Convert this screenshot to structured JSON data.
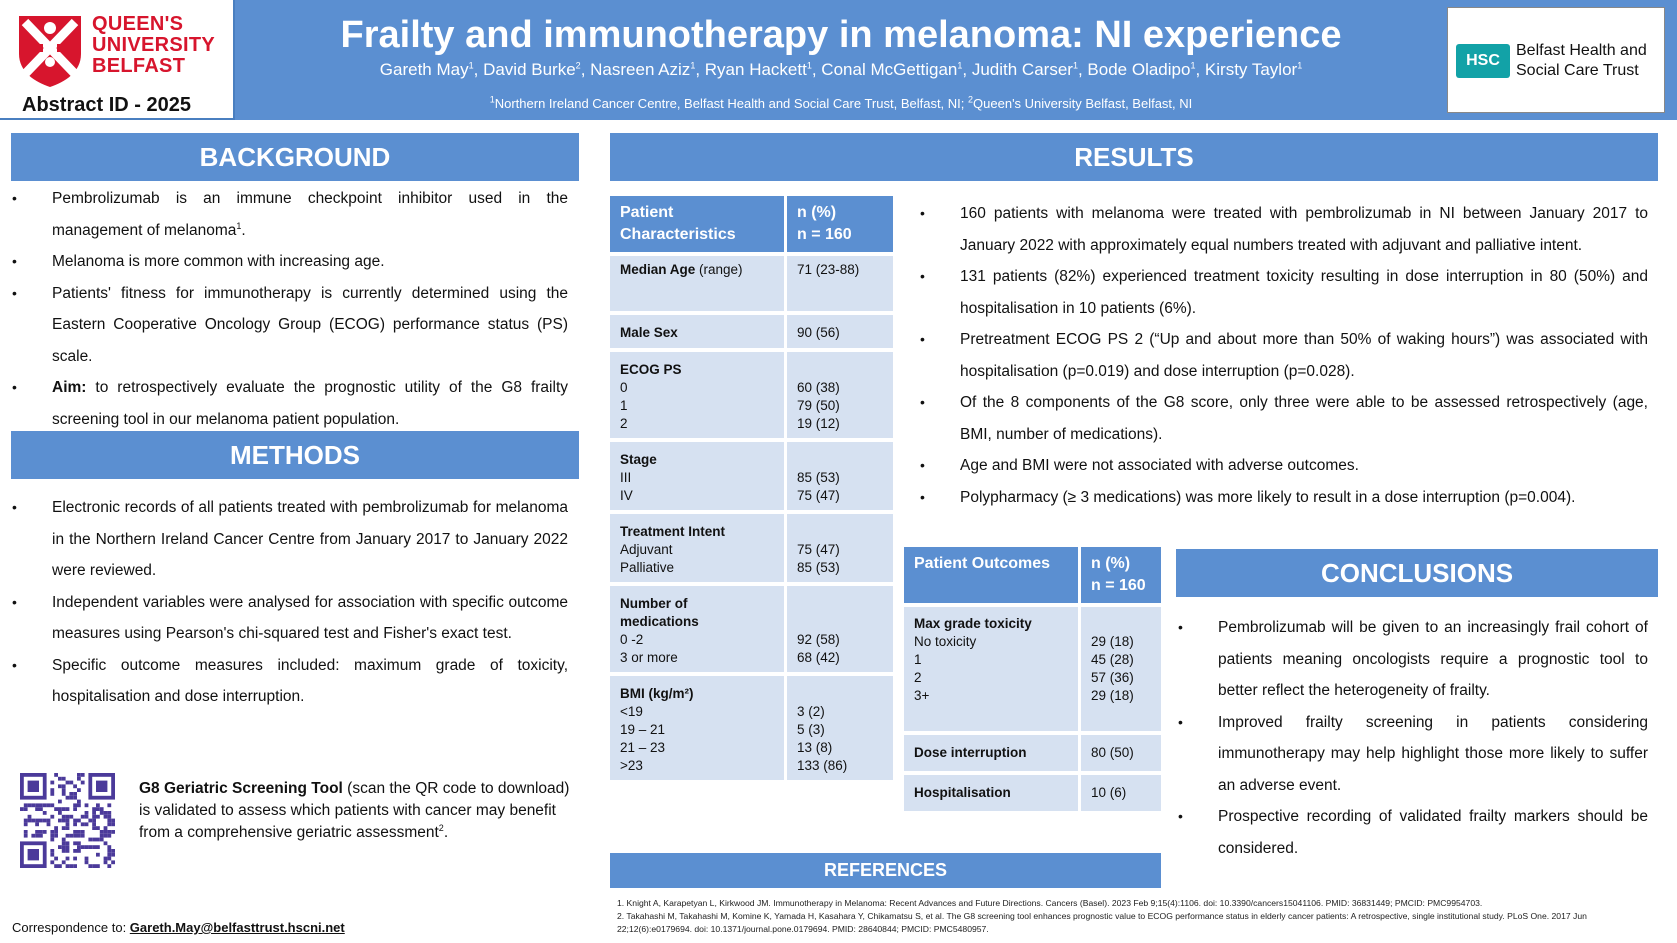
{
  "header": {
    "university": [
      "QUEEN'S",
      "UNIVERSITY",
      "BELFAST"
    ],
    "abstract_id": "Abstract ID - 2025",
    "title": "Frailty and immunotherapy in melanoma: NI experience",
    "authors": [
      {
        "name": "Gareth May",
        "sup": "1"
      },
      {
        "name": "David Burke",
        "sup": "2"
      },
      {
        "name": "Nasreen Aziz",
        "sup": "1"
      },
      {
        "name": "Ryan Hackett",
        "sup": "1"
      },
      {
        "name": "Conal McGettigan",
        "sup": "1"
      },
      {
        "name": "Judith Carser",
        "sup": "1"
      },
      {
        "name": "Bode Oladipo",
        "sup": "1"
      },
      {
        "name": "Kirsty Taylor",
        "sup": "1"
      }
    ],
    "affil_1": "Northern Ireland Cancer Centre, Belfast Health and Social Care Trust, Belfast, NI; ",
    "affil_2": "Queen's University Belfast, Belfast, NI",
    "hsc_logo": "HSC",
    "hsc_line1": "Belfast Health and",
    "hsc_line2": "Social Care Trust",
    "colors": {
      "accent": "#5b8fd1",
      "table_fill": "#d6e1f1",
      "qub_red": "#d7152d",
      "hsc_teal": "#12a2a7"
    }
  },
  "background": {
    "heading": "BACKGROUND",
    "items": [
      {
        "pre": "Pembrolizumab is an immune checkpoint inhibitor used in the management of melanoma",
        "sup": "1",
        "post": "."
      },
      {
        "pre": "Melanoma is more common with increasing age.",
        "sup": "",
        "post": ""
      },
      {
        "pre": "Patients' fitness for immunotherapy is currently determined using the Eastern Cooperative Oncology Group (ECOG) performance status (PS) scale.",
        "sup": "",
        "post": ""
      }
    ],
    "aim_label": "Aim:",
    "aim_text": " to retrospectively evaluate the prognostic utility of the G8 frailty screening tool in our melanoma patient population."
  },
  "methods": {
    "heading": "METHODS",
    "items": [
      "Electronic records of all patients treated with pembrolizumab for melanoma in the Northern Ireland Cancer Centre from January 2017 to January 2022 were reviewed.",
      "Independent variables were analysed for association with specific outcome measures using Pearson's chi-squared test and Fisher's exact test.",
      "Specific outcome measures included: maximum grade of toxicity, hospitalisation and dose interruption."
    ],
    "g8_bold": "G8 Geriatric Screening Tool",
    "g8_rest": " (scan the QR code to download) is validated to assess which patients with cancer may benefit from a comprehensive geriatric assessment",
    "g8_sup": "2",
    "g8_end": "."
  },
  "correspondence": {
    "label": "Correspondence to: ",
    "email": "Gareth.May@belfasttrust.hscni.net"
  },
  "results": {
    "heading": "RESULTS",
    "items": [
      "160 patients with melanoma were treated with pembrolizumab in NI between January 2017 to January 2022 with approximately equal numbers treated with adjuvant and palliative intent.",
      "131 patients (82%) experienced treatment toxicity resulting in dose interruption in 80 (50%) and hospitalisation in 10 patients (6%).",
      "Pretreatment ECOG PS 2 (“Up and about more than 50% of waking hours”) was associated with hospitalisation (p=0.019) and dose interruption (p=0.028).",
      "Of the 8 components of the G8 score, only three were able to be assessed retrospectively (age, BMI, number of medications).",
      "Age and BMI were not associated with adverse outcomes.",
      "Polypharmacy (≥ 3 medications) was more likely to result in a dose interruption (p=0.004)."
    ]
  },
  "characteristics_table": {
    "header_left": [
      "Patient",
      "Characteristics"
    ],
    "header_right": [
      "n (%)",
      "n = 160"
    ],
    "median_age_label": "Median Age",
    "median_age_suffix": " (range)",
    "median_age_value": "71 (23-88)",
    "male_sex_label": "Male Sex",
    "male_sex_value": "90 (56)",
    "groups": [
      {
        "title": [
          "ECOG PS"
        ],
        "rows": [
          [
            "0",
            "60 (38)"
          ],
          [
            "1",
            "79 (50)"
          ],
          [
            "2",
            "19 (12)"
          ]
        ]
      },
      {
        "title": [
          "Stage"
        ],
        "rows": [
          [
            "III",
            "85 (53)"
          ],
          [
            "IV",
            "75 (47)"
          ]
        ]
      },
      {
        "title": [
          "Treatment Intent"
        ],
        "rows": [
          [
            "Adjuvant",
            "75 (47)"
          ],
          [
            "Palliative",
            "85 (53)"
          ]
        ]
      },
      {
        "title": [
          "Number of",
          "medications"
        ],
        "rows": [
          [
            "0 -2",
            "92 (58)"
          ],
          [
            "3 or more",
            "68 (42)"
          ]
        ]
      },
      {
        "title": [
          "BMI (kg/m²)"
        ],
        "rows": [
          [
            "<19",
            "3 (2)"
          ],
          [
            "19 – 21",
            "5 (3)"
          ],
          [
            "21 – 23",
            "13 (8)"
          ],
          [
            ">23",
            "133 (86)"
          ]
        ]
      }
    ]
  },
  "outcomes_table": {
    "header_left": "Patient Outcomes",
    "header_right": [
      "n (%)",
      "n = 160"
    ],
    "toxicity_title": "Max grade toxicity",
    "toxicity_rows": [
      [
        "No toxicity",
        "29 (18)"
      ],
      [
        "1",
        "45 (28)"
      ],
      [
        "2",
        "57 (36)"
      ],
      [
        "3+",
        "29 (18)"
      ]
    ],
    "dose_label": "Dose interruption",
    "dose_value": "80 (50)",
    "hosp_label": "Hospitalisation",
    "hosp_value": "10 (6)"
  },
  "conclusions": {
    "heading": "CONCLUSIONS",
    "items": [
      "Pembrolizumab will be given to an increasingly frail cohort of patients meaning oncologists require a prognostic tool to better reflect the heterogeneity of frailty.",
      "Improved frailty screening in patients considering immunotherapy may help highlight those more likely to suffer an adverse event.",
      "Prospective recording of validated frailty markers should be considered."
    ]
  },
  "references": {
    "heading": "REFERENCES",
    "items": [
      "1. Knight A, Karapetyan L, Kirkwood JM. Immunotherapy in Melanoma: Recent Advances and Future Directions. Cancers (Basel). 2023 Feb 9;15(4):1106. doi: 10.3390/cancers15041106. PMID: 36831449; PMCID: PMC9954703.",
      "2. Takahashi M, Takahashi M, Komine K, Yamada H, Kasahara Y, Chikamatsu S, et al. The G8 screening tool enhances prognostic value to ECOG performance status in elderly cancer patients: A retrospective, single institutional study. PLoS One. 2017 Jun 22;12(6):e0179694. doi: 10.1371/journal.pone.0179694. PMID: 28640844; PMCID: PMC5480957."
    ]
  }
}
